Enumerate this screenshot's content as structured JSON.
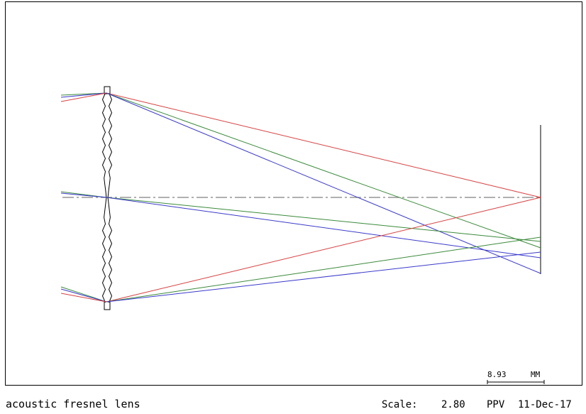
{
  "title": "acoustic fresnel lens",
  "footer": {
    "scale_label": "Scale:",
    "scale_value": "2.80",
    "ppv": "PPV",
    "date": "11-Dec-17"
  },
  "scale_bar": {
    "value": "8.93",
    "unit": "MM"
  },
  "colors": {
    "ray_red": "#d94040",
    "ray_green": "#3a8a3a",
    "ray_blue": "#3a3acc",
    "axis": "#808080",
    "lens": "#000000"
  }
}
